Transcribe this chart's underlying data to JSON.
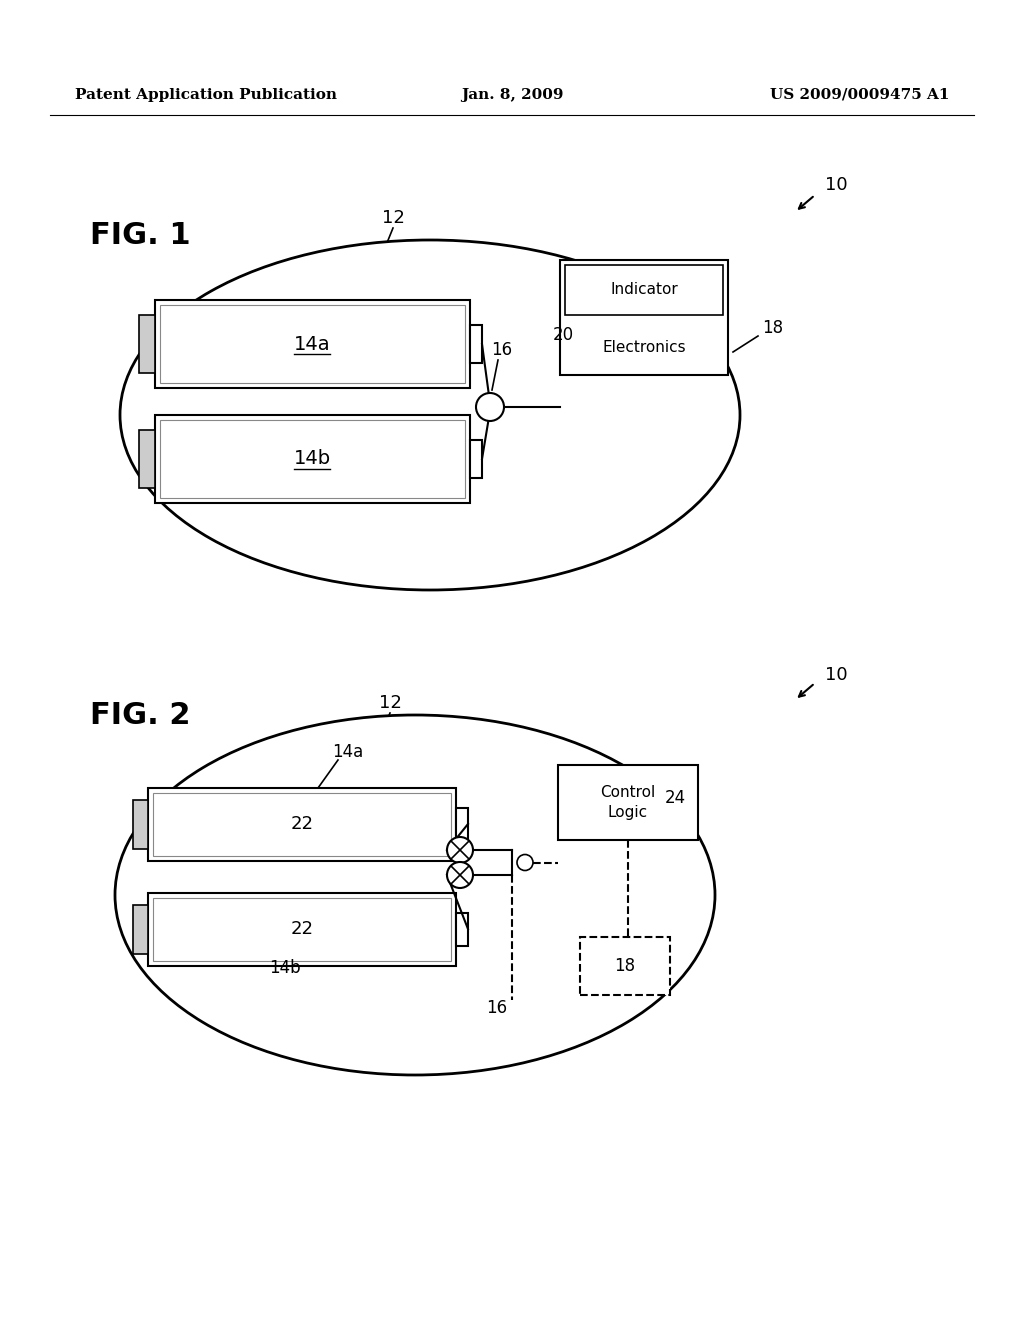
{
  "header_left": "Patent Application Publication",
  "header_center": "Jan. 8, 2009",
  "header_right": "US 2009/0009475 A1",
  "fig1_label": "FIG. 1",
  "fig2_label": "FIG. 2",
  "bg_color": "#ffffff",
  "line_color": "#000000",
  "gray_color": "#aaaaaa"
}
